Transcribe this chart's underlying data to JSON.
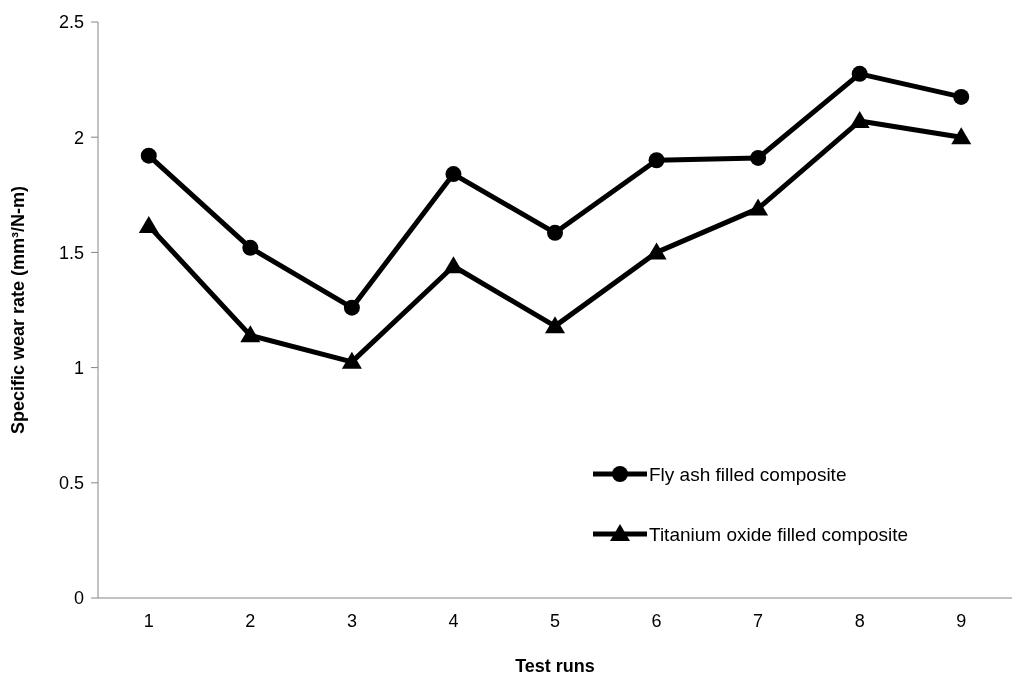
{
  "chart_data": {
    "type": "line",
    "xlabel": "Test runs",
    "ylabel": "Specific wear rate (mm³/N-m)",
    "categories": [
      "1",
      "2",
      "3",
      "4",
      "5",
      "6",
      "7",
      "8",
      "9"
    ],
    "series": [
      {
        "name": "Fly ash filled composite",
        "color": "#000000",
        "marker": "circle",
        "values": [
          1.92,
          1.52,
          1.26,
          1.84,
          1.585,
          1.9,
          1.91,
          2.275,
          2.175
        ]
      },
      {
        "name": "Titanium oxide filled composite",
        "color": "#000000",
        "marker": "triangle",
        "values": [
          1.615,
          1.14,
          1.025,
          1.44,
          1.18,
          1.5,
          1.69,
          2.07,
          2.0
        ]
      }
    ],
    "ylim": [
      0,
      2.5
    ],
    "yticks": [
      0,
      0.5,
      1,
      1.5,
      2,
      2.5
    ],
    "grid": false,
    "legend": "bottom right",
    "line_style": "solid"
  }
}
